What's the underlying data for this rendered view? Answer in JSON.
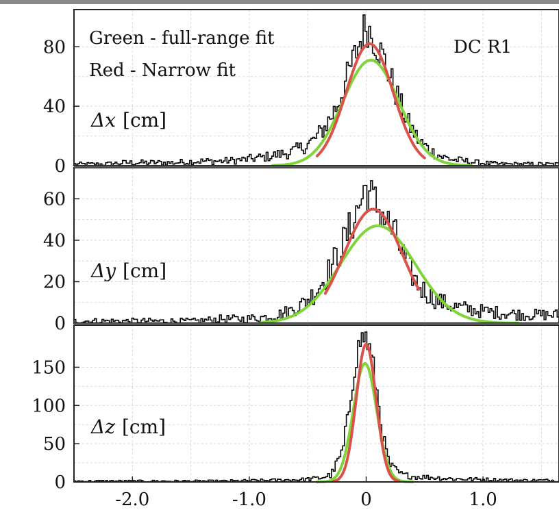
{
  "chart_data": [
    {
      "type": "line",
      "panel": "Δx",
      "label_symbol": "Δx",
      "label_unit": "[cm]",
      "xlim": [
        -2.5,
        1.65
      ],
      "ylim": [
        0,
        105
      ],
      "yticks": [
        0,
        40,
        80
      ],
      "grid": true,
      "annotations": [
        "Green - full-range fit",
        "Red - Narrow fit",
        "DC R1"
      ],
      "series": [
        {
          "kind": "histogram",
          "color": "#000000",
          "x": [
            -2.45,
            -2.25,
            -2.05,
            -1.85,
            -1.65,
            -1.45,
            -1.25,
            -1.05,
            -0.85,
            -0.65,
            -0.55,
            -0.45,
            -0.35,
            -0.25,
            -0.15,
            -0.05,
            0.0,
            0.05,
            0.15,
            0.25,
            0.35,
            0.45,
            0.55,
            0.65,
            0.75,
            0.95,
            1.15,
            1.35,
            1.55
          ],
          "y": [
            1,
            1,
            2,
            2,
            2,
            3,
            3,
            4,
            6,
            9,
            12,
            17,
            26,
            40,
            62,
            84,
            95,
            88,
            72,
            50,
            30,
            17,
            10,
            6,
            4,
            2,
            1,
            1,
            1
          ]
        },
        {
          "kind": "fit",
          "name": "Red - Narrow fit",
          "color": "#d9534a",
          "amp": 82,
          "mu": 0.03,
          "sigma": 0.2,
          "range": [
            -0.42,
            0.5
          ]
        },
        {
          "kind": "fit",
          "name": "Green - full-range fit",
          "color": "#7fd43a",
          "amp": 71,
          "mu": 0.04,
          "sigma": 0.24,
          "range": [
            -0.8,
            0.9
          ]
        }
      ]
    },
    {
      "type": "line",
      "panel": "Δy",
      "label_symbol": "Δy",
      "label_unit": "[cm]",
      "xlim": [
        -2.5,
        1.65
      ],
      "ylim": [
        0,
        75
      ],
      "yticks": [
        0,
        20,
        40,
        60
      ],
      "grid": true,
      "series": [
        {
          "kind": "histogram",
          "color": "#000000",
          "x": [
            -2.45,
            -2.25,
            -2.05,
            -1.85,
            -1.65,
            -1.45,
            -1.25,
            -1.05,
            -0.85,
            -0.75,
            -0.65,
            -0.55,
            -0.45,
            -0.35,
            -0.25,
            -0.15,
            -0.05,
            0.0,
            0.05,
            0.15,
            0.25,
            0.35,
            0.45,
            0.55,
            0.65,
            0.75,
            0.95,
            1.15,
            1.35,
            1.55
          ],
          "y": [
            1,
            1,
            1,
            1,
            1,
            1,
            2,
            2,
            3,
            4,
            6,
            9,
            14,
            22,
            32,
            44,
            58,
            66,
            60,
            52,
            42,
            28,
            18,
            13,
            10,
            8,
            6,
            5,
            4,
            4
          ]
        },
        {
          "kind": "fit",
          "name": "Red - Narrow fit",
          "color": "#d9534a",
          "amp": 55,
          "mu": 0.06,
          "sigma": 0.25,
          "range": [
            -0.35,
            0.45
          ]
        },
        {
          "kind": "fit",
          "name": "Green - full-range fit",
          "color": "#7fd43a",
          "amp": 47,
          "mu": 0.1,
          "sigma": 0.32,
          "range": [
            -0.9,
            1.3
          ]
        }
      ]
    },
    {
      "type": "line",
      "panel": "Δz",
      "label_symbol": "Δz",
      "label_unit": "[cm]",
      "xlim": [
        -2.5,
        1.65
      ],
      "xticks": [
        -2.0,
        -1.0,
        0,
        1.0
      ],
      "xtick_labels": [
        "-2.0",
        "-1.0",
        "0",
        "1.0"
      ],
      "ylim": [
        0,
        205
      ],
      "yticks": [
        0,
        50,
        100,
        150
      ],
      "grid": true,
      "series": [
        {
          "kind": "histogram",
          "color": "#000000",
          "x": [
            -2.45,
            -2.05,
            -1.65,
            -1.25,
            -0.85,
            -0.55,
            -0.4,
            -0.3,
            -0.2,
            -0.15,
            -0.1,
            -0.05,
            0.0,
            0.05,
            0.1,
            0.15,
            0.2,
            0.3,
            0.4,
            0.55,
            0.75,
            1.05,
            1.35,
            1.55
          ],
          "y": [
            1,
            1,
            1,
            1,
            2,
            3,
            5,
            9,
            40,
            90,
            150,
            185,
            190,
            160,
            110,
            55,
            22,
            10,
            7,
            6,
            4,
            3,
            2,
            2
          ]
        },
        {
          "kind": "fit",
          "name": "Red - Narrow fit",
          "color": "#d9534a",
          "amp": 180,
          "mu": 0.0,
          "sigma": 0.085,
          "range": [
            -0.28,
            0.28
          ]
        },
        {
          "kind": "fit",
          "name": "Green - full-range fit",
          "color": "#7fd43a",
          "amp": 155,
          "mu": -0.01,
          "sigma": 0.1,
          "range": [
            -0.42,
            0.4
          ]
        }
      ]
    }
  ]
}
